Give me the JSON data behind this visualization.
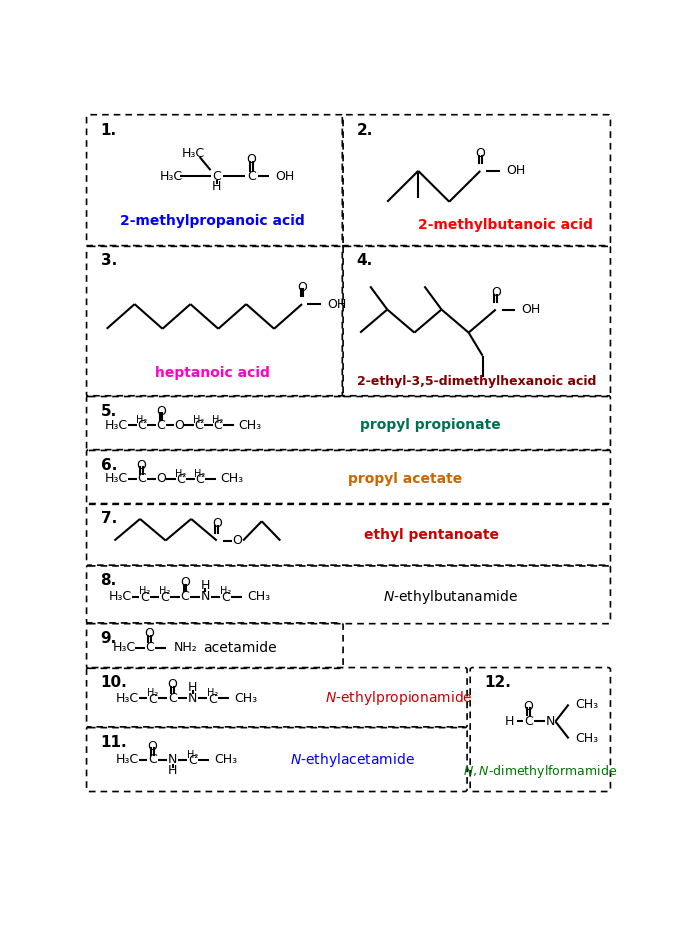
{
  "bg_color": "#ffffff",
  "names": {
    "1": {
      "label": "2-methylpropanoic acid",
      "color": "#0000ff"
    },
    "2": {
      "label": "2-methylbutanoic acid",
      "color": "#ff0000"
    },
    "3": {
      "label": "heptanoic acid",
      "color": "#ff00cc"
    },
    "4": {
      "label": "2-ethyl-3,5-dimethylhexanoic acid",
      "color": "#800000"
    },
    "5": {
      "label": "propyl propionate",
      "color": "#007050"
    },
    "6": {
      "label": "propyl acetate",
      "color": "#cc6600"
    },
    "7": {
      "label": "ethyl pentanoate",
      "color": "#cc0000"
    },
    "8": {
      "label": "N-ethylbutanamide",
      "color": "#000000"
    },
    "9": {
      "label": "acetamide",
      "color": "#000000"
    },
    "10": {
      "label": "N-ethylpropionamide",
      "color": "#cc0000"
    },
    "11": {
      "label": "N-ethylacetamide",
      "color": "#0000ff"
    },
    "12": {
      "label": "N,N-dimethylformamide",
      "color": "#007700"
    }
  },
  "boxes": {
    "1": [
      5,
      5,
      330,
      170
    ],
    "2": [
      335,
      5,
      675,
      170
    ],
    "3": [
      5,
      175,
      330,
      365
    ],
    "4": [
      335,
      175,
      675,
      365
    ],
    "5": [
      5,
      370,
      675,
      435
    ],
    "6": [
      5,
      440,
      675,
      505
    ],
    "7": [
      5,
      510,
      675,
      585
    ],
    "8": [
      5,
      590,
      675,
      660
    ],
    "9": [
      5,
      665,
      330,
      718
    ],
    "10": [
      5,
      723,
      490,
      795
    ],
    "11": [
      5,
      800,
      490,
      878
    ],
    "12": [
      500,
      723,
      675,
      878
    ]
  }
}
